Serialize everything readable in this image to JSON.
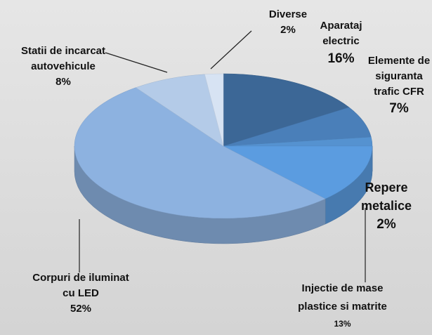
{
  "chart_data": {
    "type": "pie",
    "categories": [
      "Aparataj electric",
      "Elemente de siguranta trafic CFR",
      "Repere metalice",
      "Injectie de mase plastice si matrite",
      "Corpuri de iluminat cu LED",
      "Statii de incarcat autovehicule",
      "Diverse"
    ],
    "values": [
      16,
      7,
      2,
      13,
      52,
      8,
      2
    ],
    "value_labels": [
      "16%",
      "7%",
      "2%",
      "13%",
      "52%",
      "8%",
      "2%"
    ],
    "colors": [
      "#3c6796",
      "#4a7fb9",
      "#5592d0",
      "#5b9ce0",
      "#8db2e0",
      "#b4cbe8",
      "#d7e3f3"
    ]
  }
}
